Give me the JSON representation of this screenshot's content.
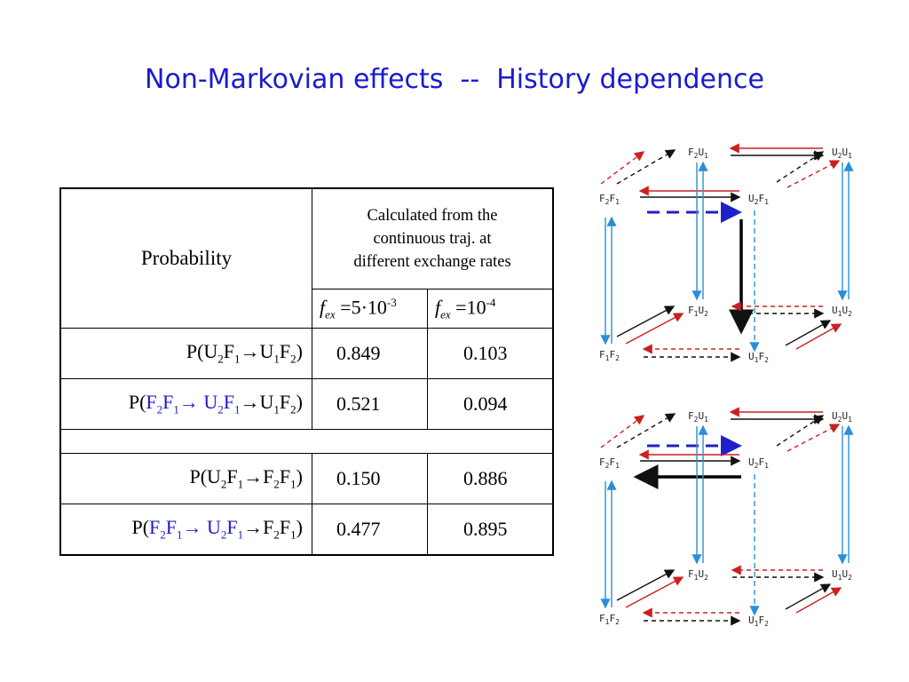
{
  "title": "Non-Markovian effects  --  History dependence",
  "table": {
    "header_probability": "Probability",
    "header_calc_line1": "Calculated from the",
    "header_calc_line2": "continuous traj.  at",
    "header_calc_line3": "different exchange rates",
    "rate1": {
      "f": "f",
      "sub": "ex",
      "mid": " =5·10",
      "exp": "-3"
    },
    "rate2": {
      "f": "f",
      "sub": "ex",
      "mid": " =10",
      "exp": "-4"
    },
    "rows": [
      {
        "label_html": "P(U<sub>2</sub>F<sub>1</sub>&rarr;U<sub>1</sub>F<sub>2</sub>)",
        "v1": "0.849",
        "v2": "0.103",
        "blue": false
      },
      {
        "label_html": "P(<span class=\"blue\">F<sub>2</sub>F<sub>1</sub>&rarr; U<sub>2</sub>F<sub>1</sub></span>&rarr;U<sub>1</sub>F<sub>2</sub>)",
        "v1": "0.521",
        "v2": "0.094",
        "blue": true
      },
      {
        "label_html": "P(U<sub>2</sub>F<sub>1</sub>&rarr;F<sub>2</sub>F<sub>1</sub>)",
        "v1": "0.150",
        "v2": "0.886",
        "blue": false
      },
      {
        "label_html": "P(<span class=\"blue\">F<sub>2</sub>F<sub>1</sub>&rarr; U<sub>2</sub>F<sub>1</sub></span>&rarr;F<sub>2</sub>F<sub>1</sub>)",
        "v1": "0.477",
        "v2": "0.895",
        "blue": true
      }
    ]
  },
  "diagram_nodes": {
    "f2u1_a": "F2U1",
    "f2u1_b": "1",
    "u2u1": "U2U1",
    "f2f1": "F2F1",
    "u2f1": "U2F1",
    "f1u2": "F1U2",
    "u1u2": "U1U2",
    "f1f2": "F1F2",
    "u1f2": "U1F2"
  },
  "colors": {
    "title": "#1a1ad0",
    "blue_text": "#1a1ad0",
    "arrow_red": "#cc2020",
    "arrow_blue": "#2a8fd8",
    "arrow_dash_blue": "#2020c8"
  }
}
